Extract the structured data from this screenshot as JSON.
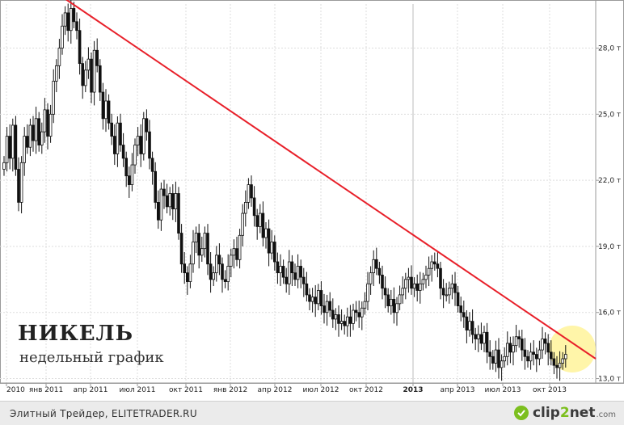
{
  "chart_data": {
    "type": "candlestick",
    "title": "НИКЕЛЬ",
    "subtitle": "недельный график",
    "ylim": [
      12.8,
      30.0
    ],
    "y_ticks": [
      "13,0 т",
      "16,0 т",
      "19,0 т",
      "22,0 т",
      "25,0 т",
      "28,0 т"
    ],
    "y_tick_values": [
      13,
      16,
      19,
      22,
      25,
      28
    ],
    "x_ticks": [
      "2010",
      "янв 2011",
      "апр 2011",
      "июл 2011",
      "окт 2011",
      "янв 2012",
      "апр 2012",
      "июл 2012",
      "окт 2012",
      "2013",
      "апр 2013",
      "июл 2013",
      "окт 2013"
    ],
    "x_tick_bold": [
      false,
      false,
      false,
      false,
      false,
      false,
      false,
      false,
      false,
      true,
      false,
      false,
      false
    ],
    "trendline": {
      "color": "#e8202a",
      "start": {
        "x": "янв 2011",
        "y": 30.2
      },
      "end": {
        "x": "дек 2013",
        "y": 13.9
      }
    },
    "highlight": {
      "color": "#fff39a",
      "at": "дек 2013"
    },
    "weekly_close": [
      22.8,
      24.0,
      23.0,
      24.5,
      22.5,
      21.0,
      22.8,
      24.0,
      23.5,
      24.5,
      23.8,
      24.8,
      23.6,
      24.2,
      25.2,
      24.0,
      25.0,
      26.5,
      27.2,
      28.0,
      29.0,
      29.6,
      28.8,
      29.8,
      29.2,
      28.8,
      27.3,
      26.3,
      27.0,
      27.5,
      26.0,
      27.9,
      27.2,
      26.0,
      24.8,
      25.6,
      24.6,
      24.0,
      23.2,
      24.6,
      23.6,
      23.0,
      22.2,
      21.8,
      22.7,
      23.6,
      24.0,
      23.2,
      24.8,
      24.2,
      23.0,
      22.4,
      21.0,
      20.2,
      21.6,
      21.3,
      20.8,
      21.4,
      20.7,
      21.4,
      19.6,
      18.2,
      17.8,
      17.4,
      18.2,
      19.2,
      19.6,
      18.6,
      18.9,
      19.6,
      18.2,
      17.5,
      17.8,
      18.6,
      18.2,
      17.5,
      17.4,
      18.1,
      18.6,
      18.9,
      18.4,
      19.5,
      20.5,
      21.0,
      21.8,
      21.2,
      20.4,
      19.9,
      20.5,
      19.4,
      19.8,
      18.7,
      19.2,
      18.3,
      17.8,
      18.1,
      17.6,
      17.3,
      18.3,
      17.8,
      17.5,
      18.1,
      17.6,
      17.3,
      16.8,
      16.5,
      16.7,
      16.4,
      17.0,
      16.3,
      16.0,
      16.5,
      16.1,
      15.7,
      15.9,
      15.5,
      15.6,
      15.4,
      15.8,
      15.5,
      16.1,
      16.0,
      15.8,
      16.2,
      16.5,
      17.3,
      17.8,
      18.4,
      18.0,
      17.7,
      17.1,
      16.8,
      16.3,
      16.6,
      16.0,
      16.4,
      16.8,
      17.1,
      17.5,
      17.6,
      17.1,
      17.3,
      17.0,
      17.3,
      17.5,
      17.7,
      18.0,
      18.3,
      18.2,
      18.0,
      17.1,
      16.8,
      16.8,
      17.1,
      17.3,
      16.9,
      16.3,
      16.0,
      15.8,
      15.2,
      15.6,
      15.0,
      14.8,
      15.0,
      14.6,
      15.1,
      14.2,
      14.0,
      13.7,
      14.3,
      13.5,
      13.8,
      14.0,
      14.6,
      14.2,
      14.5,
      14.9,
      14.8,
      14.3,
      14.0,
      13.8,
      14.2,
      14.1,
      13.9,
      14.3,
      14.8,
      14.6,
      14.2,
      13.9,
      13.6,
      13.5,
      13.7,
      13.9,
      14.1
    ]
  },
  "footer": {
    "credit": "Элитный Трейдер, ELITETRADER.RU",
    "logo_main": "clip",
    "logo_accent": "2",
    "logo_rest": "net",
    "logo_tld": ".com"
  }
}
